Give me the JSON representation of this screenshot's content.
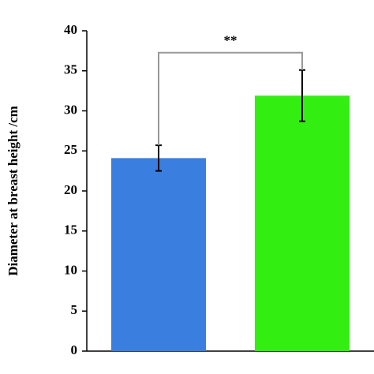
{
  "chart_data": {
    "type": "bar",
    "ylabel": "Diameter at breast height /cm",
    "categories": [
      null,
      null
    ],
    "values": [
      24.1,
      31.9
    ],
    "errors": [
      1.6,
      3.2
    ],
    "colors": [
      "#3a7fe0",
      "#33ee11"
    ],
    "annotation": "**",
    "ylim": [
      0,
      40
    ],
    "yticks": [
      0,
      5,
      10,
      15,
      20,
      25,
      30,
      35,
      40
    ]
  }
}
